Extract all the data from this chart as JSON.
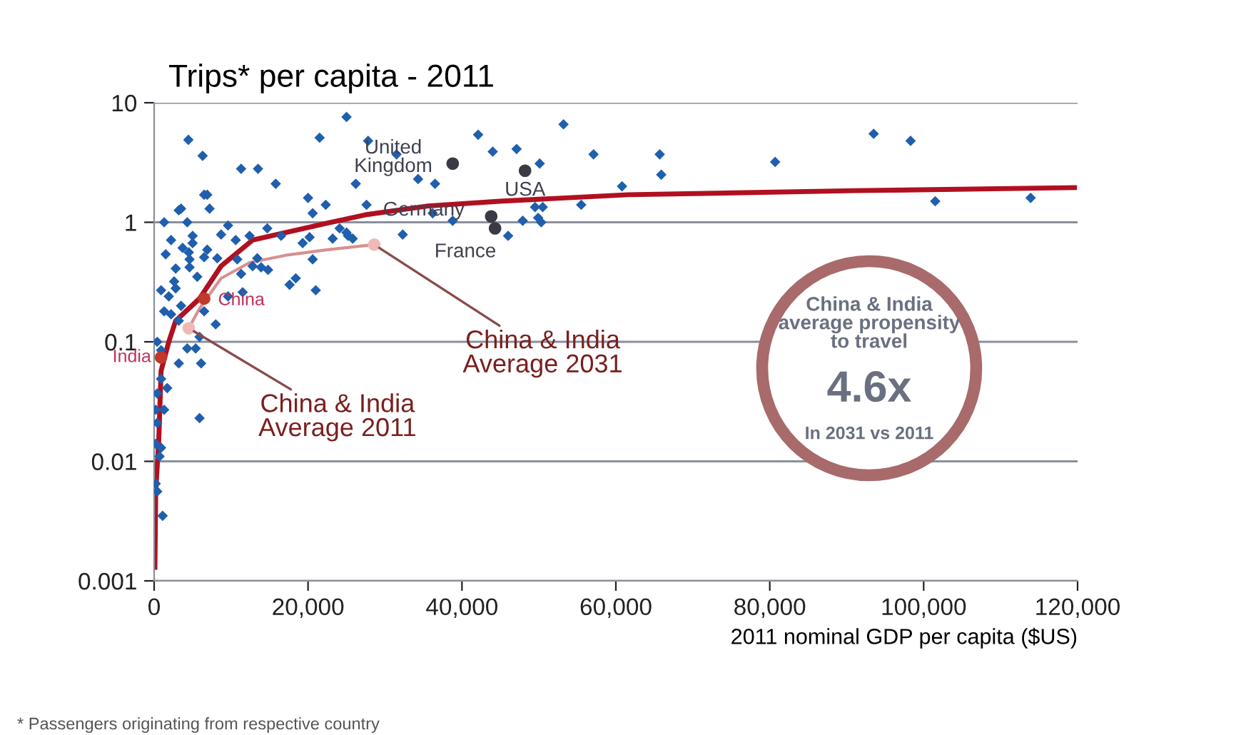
{
  "chart_data": {
    "type": "scatter",
    "title": "Trips* per capita - 2011",
    "xlabel": "2011 nominal GDP per capita ($US)",
    "log": "y",
    "grid": "y",
    "xlim": [
      0,
      120000
    ],
    "ylim": [
      0.001,
      10
    ],
    "xticks": [
      0,
      {
        "value": 20000,
        "label": "20,000"
      },
      {
        "value": 40000,
        "label": "40,000"
      },
      {
        "value": 60000,
        "label": "60,000"
      },
      {
        "value": 80000,
        "label": "80,000"
      },
      {
        "value": 100000,
        "label": "100,000"
      },
      {
        "value": 120000,
        "label": "120,000"
      }
    ],
    "yticks": [
      0.001,
      0.01,
      0.1,
      1,
      10
    ],
    "series": [
      {
        "marker": "diamond",
        "color": "#1f5fad",
        "x": [
          4450,
          6300,
          11300,
          13500,
          15800,
          20000,
          20600,
          22300,
          25000,
          21500,
          27800,
          26200,
          6500,
          6900,
          3500,
          3200,
          7200,
          4300,
          9600,
          8700,
          5000,
          10600,
          12400,
          14700,
          16500,
          19300,
          20200,
          23200,
          24100,
          25200,
          3700,
          5000,
          6900,
          1500,
          4500,
          6500,
          8200,
          10800,
          13400,
          13900,
          12800,
          2800,
          4600,
          5600,
          11300,
          14800,
          18400,
          17600,
          20600,
          21000,
          900,
          1900,
          2800,
          3500,
          1300,
          2200,
          3200,
          11500,
          9600,
          6500,
          8000,
          5900,
          4300,
          5400,
          6100,
          3200,
          400,
          900,
          900,
          1700,
          400,
          200,
          1300,
          400,
          5900,
          200,
          900,
          700,
          200,
          400,
          1100,
          1300,
          2200,
          4600,
          2600,
          31500,
          42100,
          44000,
          47100,
          53200,
          50100,
          57100,
          34300,
          36500,
          27600,
          36200,
          38800,
          25000,
          25800,
          32300,
          47900,
          46000,
          49500,
          50500,
          49900,
          50300,
          55500,
          60800,
          65700,
          65900,
          80700,
          93500,
          98300,
          101500,
          113900
        ],
        "values": [
          4.9,
          3.6,
          2.8,
          2.8,
          2.1,
          1.6,
          1.19,
          1.4,
          7.6,
          5.1,
          4.8,
          2.1,
          1.7,
          1.7,
          1.3,
          1.26,
          1.3,
          1.0,
          0.94,
          0.79,
          0.77,
          0.71,
          0.77,
          0.89,
          0.77,
          0.67,
          0.75,
          0.73,
          0.89,
          0.77,
          0.61,
          0.67,
          0.59,
          0.54,
          0.56,
          0.51,
          0.5,
          0.49,
          0.5,
          0.42,
          0.43,
          0.41,
          0.42,
          0.35,
          0.37,
          0.4,
          0.34,
          0.3,
          0.49,
          0.27,
          0.27,
          0.24,
          0.28,
          0.2,
          0.18,
          0.17,
          0.15,
          0.26,
          0.24,
          0.18,
          0.14,
          0.11,
          0.088,
          0.088,
          0.066,
          0.066,
          0.1,
          0.085,
          0.049,
          0.041,
          0.037,
          0.027,
          0.027,
          0.021,
          0.023,
          0.014,
          0.013,
          0.011,
          0.0065,
          0.0056,
          0.0035,
          1.0,
          0.71,
          0.49,
          0.32,
          3.7,
          5.4,
          3.9,
          4.1,
          6.6,
          3.1,
          3.7,
          2.3,
          2.1,
          1.4,
          1.19,
          1.03,
          0.82,
          0.73,
          0.79,
          1.03,
          0.77,
          1.34,
          1.34,
          1.09,
          1.0,
          1.4,
          2.0,
          3.7,
          2.5,
          3.2,
          5.5,
          4.8,
          1.5,
          1.6
        ]
      },
      {
        "type": "line",
        "marker": "none",
        "color": "#b01020",
        "x": [
          100,
          200,
          600,
          900,
          1900,
          2800,
          5900,
          8700,
          12800,
          22100,
          27600,
          35600,
          44900,
          61600,
          91300,
          119600
        ],
        "values": [
          0.0013,
          0.0056,
          0.015,
          0.057,
          0.1,
          0.15,
          0.23,
          0.43,
          0.71,
          0.97,
          1.16,
          1.37,
          1.5,
          1.7,
          1.84,
          1.95
        ]
      },
      {
        "type": "line",
        "marker": "none",
        "color": "#d89090",
        "x": [
          4500,
          5900,
          8700,
          12400,
          17100,
          22600,
          28600
        ],
        "values": [
          0.13,
          0.19,
          0.34,
          0.46,
          0.53,
          0.59,
          0.65
        ]
      },
      {
        "type": "scatter",
        "marker": "circle",
        "color": "#3a3a45",
        "x": [
          38800,
          48200,
          43800,
          44300
        ],
        "values": [
          3.1,
          2.7,
          1.12,
          0.89
        ]
      },
      {
        "type": "scatter",
        "marker": "circle",
        "color": "#c0392b",
        "x": [
          6500,
          900
        ],
        "values": [
          0.23,
          0.074
        ]
      },
      {
        "type": "scatter",
        "marker": "circle",
        "color": "#f2b8b8",
        "x": [
          4500,
          28600
        ],
        "values": [
          0.13,
          0.65
        ]
      }
    ],
    "annotations": [
      {
        "text": "United\nKingdom",
        "x": 38800,
        "y": 3.1
      },
      {
        "text": "USA",
        "x": 48200,
        "y": 2.7
      },
      {
        "text": "Germany",
        "x": 43800,
        "y": 1.12
      },
      {
        "text": "France",
        "x": 44300,
        "y": 0.89
      },
      {
        "text": "China",
        "x": 6500,
        "y": 0.23
      },
      {
        "text": "India",
        "x": 900,
        "y": 0.074
      },
      {
        "text": "China & India\nAverage 2011",
        "x": 4500,
        "y": 0.13
      },
      {
        "text": "China & India\nAverage 2031",
        "x": 28600,
        "y": 0.65
      },
      "China & India\naverage propensity\nto travel",
      "4.6x",
      "In 2031 vs 2011",
      "* Passengers originating from respective country"
    ]
  }
}
